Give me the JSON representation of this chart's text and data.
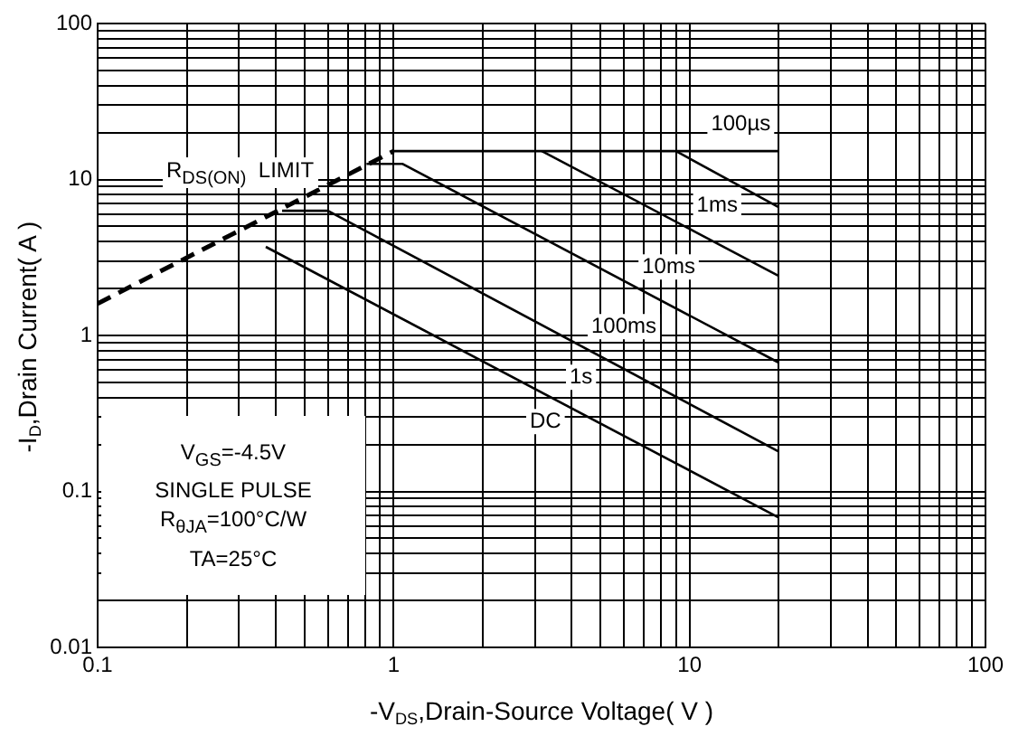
{
  "chart_data": {
    "type": "line",
    "xlabel": "-V$_{DS}$,Drain-Source Voltage( V )",
    "ylabel": "-I$_{D}$,Drain Current( A )",
    "log": "xy",
    "grid": true,
    "legend": false,
    "marker": "none",
    "xlim": [
      0.1,
      100
    ],
    "ylim": [
      0.01,
      100
    ],
    "xticks": [
      0.1,
      {
        "value": 0.2,
        "label": null
      },
      {
        "value": 0.3,
        "label": null
      },
      {
        "value": 0.4,
        "label": null
      },
      {
        "value": 0.5,
        "label": null
      },
      {
        "value": 0.6,
        "label": null
      },
      {
        "value": 0.7,
        "label": null
      },
      {
        "value": 0.8,
        "label": null
      },
      {
        "value": 0.9,
        "label": null
      },
      1,
      {
        "value": 2,
        "label": null
      },
      {
        "value": 3,
        "label": null
      },
      {
        "value": 4,
        "label": null
      },
      {
        "value": 5,
        "label": null
      },
      {
        "value": 6,
        "label": null
      },
      {
        "value": 7,
        "label": null
      },
      {
        "value": 8,
        "label": null
      },
      {
        "value": 9,
        "label": null
      },
      10,
      {
        "value": 20,
        "label": null
      },
      {
        "value": 30,
        "label": null
      },
      {
        "value": 40,
        "label": null
      },
      {
        "value": 50,
        "label": null
      },
      {
        "value": 60,
        "label": null
      },
      {
        "value": 70,
        "label": null
      },
      {
        "value": 80,
        "label": null
      },
      {
        "value": 90,
        "label": null
      },
      100
    ],
    "yticks": [
      0.01,
      {
        "value": 0.02,
        "label": null
      },
      {
        "value": 0.03,
        "label": null
      },
      {
        "value": 0.04,
        "label": null
      },
      {
        "value": 0.05,
        "label": null
      },
      {
        "value": 0.06,
        "label": null
      },
      {
        "value": 0.07,
        "label": null
      },
      {
        "value": 0.08,
        "label": null
      },
      {
        "value": 0.09,
        "label": null
      },
      0.1,
      {
        "value": 0.2,
        "label": null
      },
      {
        "value": 0.3,
        "label": null
      },
      {
        "value": 0.4,
        "label": null
      },
      {
        "value": 0.5,
        "label": null
      },
      {
        "value": 0.6,
        "label": null
      },
      {
        "value": 0.7,
        "label": null
      },
      {
        "value": 0.8,
        "label": null
      },
      {
        "value": 0.9,
        "label": null
      },
      1,
      {
        "value": 2,
        "label": null
      },
      {
        "value": 3,
        "label": null
      },
      {
        "value": 4,
        "label": null
      },
      {
        "value": 5,
        "label": null
      },
      {
        "value": 6,
        "label": null
      },
      {
        "value": 7,
        "label": null
      },
      {
        "value": 8,
        "label": null
      },
      {
        "value": 9,
        "label": null
      },
      10,
      {
        "value": 20,
        "label": null
      },
      {
        "value": 30,
        "label": null
      },
      {
        "value": 40,
        "label": null
      },
      {
        "value": 50,
        "label": null
      },
      {
        "value": 60,
        "label": null
      },
      {
        "value": 70,
        "label": null
      },
      {
        "value": 80,
        "label": null
      },
      {
        "value": 90,
        "label": null
      },
      100
    ],
    "series": [
      {
        "color": "#000000",
        "line_style": "dashed",
        "x": [
          0.1,
          1
        ],
        "values": [
          1.6,
          15.2
        ]
      },
      {
        "color": "#000000",
        "x": [
          1,
          20
        ],
        "values": [
          15.2,
          15.2
        ]
      },
      {
        "color": "#000000",
        "x": [
          9,
          20
        ],
        "values": [
          15.2,
          6.65
        ]
      },
      {
        "color": "#000000",
        "x": [
          3.17,
          20
        ],
        "values": [
          15.2,
          2.41
        ]
      },
      {
        "color": "#000000",
        "x": [
          0.81,
          1.07,
          20
        ],
        "values": [
          12.6,
          12.6,
          0.67
        ]
      },
      {
        "color": "#000000",
        "x": [
          0.42,
          0.6,
          20
        ],
        "values": [
          6.3,
          6.3,
          0.18
        ]
      },
      {
        "color": "#000000",
        "x": [
          0.37,
          20
        ],
        "values": [
          3.7,
          0.068
        ]
      }
    ],
    "annotations": [
      "R$_{DS(ON)}$  LIMIT",
      {
        "text": "100µs",
        "x": 14.9,
        "y": 22.7
      },
      {
        "text": "1ms",
        "x": 12.4,
        "y": 6.8
      },
      {
        "text": "10ms",
        "x": 8.5,
        "y": 2.75
      },
      {
        "text": "100ms",
        "x": 6,
        "y": 1.14
      },
      {
        "text": "1s",
        "x": 4.3,
        "y": 0.54
      },
      {
        "text": "DC",
        "x": 3.26,
        "y": 0.28
      },
      "V$_{GS}$=-4.5V",
      "SINGLE PULSE",
      "R$_{θJA}$=100°C/W",
      "TA=25°C"
    ]
  }
}
